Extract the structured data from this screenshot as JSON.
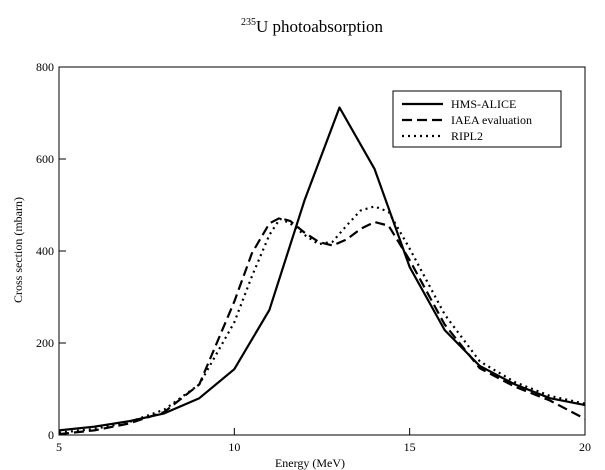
{
  "chart_data": {
    "type": "line",
    "title_sup": "235",
    "title_main": "U photoabsorption",
    "xlabel": "Energy (MeV)",
    "ylabel": "Cross section (mbarn)",
    "xlim": [
      5,
      20
    ],
    "ylim": [
      0,
      800
    ],
    "xticks": [
      5,
      10,
      15,
      20
    ],
    "yticks": [
      0,
      200,
      400,
      600,
      800
    ],
    "grid": false,
    "legend_position": "top-right",
    "series": [
      {
        "name": "HMS-ALICE",
        "style": "solid",
        "color": "#000000",
        "x": [
          5,
          6,
          7,
          8,
          9,
          10,
          11,
          12,
          13,
          14,
          15,
          16,
          17,
          18,
          19,
          20
        ],
        "y": [
          10,
          18,
          30,
          47,
          80,
          143,
          272,
          510,
          712,
          578,
          365,
          228,
          150,
          110,
          80,
          65
        ]
      },
      {
        "name": "IAEA evaluation",
        "style": "dashed",
        "color": "#000000",
        "x": [
          5,
          6,
          7,
          8,
          9,
          10,
          10.5,
          11,
          11.3,
          11.6,
          12,
          12.4,
          12.8,
          13.2,
          13.6,
          14,
          14.4,
          15,
          16,
          17,
          18,
          19,
          20
        ],
        "y": [
          2,
          10,
          25,
          50,
          110,
          290,
          395,
          460,
          472,
          465,
          440,
          420,
          412,
          425,
          448,
          463,
          455,
          380,
          240,
          145,
          105,
          75,
          35
        ]
      },
      {
        "name": "RIPL2",
        "style": "dotted",
        "color": "#000000",
        "x": [
          5,
          6,
          7,
          8,
          9,
          10,
          10.5,
          11,
          11.3,
          11.6,
          12,
          12.4,
          12.8,
          13.2,
          13.6,
          14,
          14.4,
          15,
          16,
          17,
          18,
          19,
          20
        ],
        "y": [
          5,
          13,
          28,
          55,
          110,
          245,
          345,
          435,
          470,
          460,
          435,
          415,
          420,
          455,
          488,
          497,
          485,
          405,
          262,
          160,
          115,
          85,
          68
        ]
      }
    ]
  }
}
